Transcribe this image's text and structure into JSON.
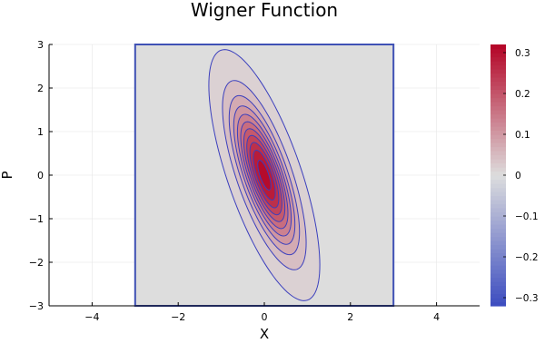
{
  "chart_data": {
    "type": "contour",
    "title": "Wigner Function",
    "xlabel": "X",
    "ylabel": "P",
    "xlim": [
      -5,
      5
    ],
    "ylim": [
      -3,
      3
    ],
    "grid": true,
    "domain": {
      "x": [
        -3,
        3
      ],
      "p": [
        -3,
        3
      ]
    },
    "peak": {
      "x": 0.0,
      "p": 0.0,
      "value": 0.318
    },
    "covariance": {
      "sxx": 0.2,
      "sxp": -0.32,
      "spp": 1.0
    },
    "contour_levels": [
      0.005,
      0.03,
      0.06,
      0.09,
      0.12,
      0.15,
      0.18,
      0.21,
      0.24,
      0.27,
      0.3
    ],
    "x_ticks": [
      -4,
      -2,
      0,
      2,
      4
    ],
    "x_tick_labels": [
      "−4",
      "−2",
      "0",
      "2",
      "4"
    ],
    "y_ticks": [
      -3,
      -2,
      -1,
      0,
      1,
      2,
      3
    ],
    "y_tick_labels": [
      "−3",
      "−2",
      "−1",
      "0",
      "1",
      "2",
      "3"
    ],
    "colorbar": {
      "colormap": "coolwarm",
      "range": [
        -0.32,
        0.32
      ],
      "ticks": [
        0.3,
        0.2,
        0.1,
        0,
        -0.1,
        -0.2,
        -0.3
      ],
      "tick_labels": [
        "0.3",
        "0.2",
        "0.1",
        "0",
        "−0.1",
        "−0.2",
        "−0.3"
      ]
    },
    "colors": {
      "contour_line": "#3b3fbd",
      "frame": "#3f51b5",
      "background_fill": "#dddddd",
      "cool": "#3b4cc0",
      "mid": "#dddddd",
      "warm": "#b40426"
    }
  }
}
